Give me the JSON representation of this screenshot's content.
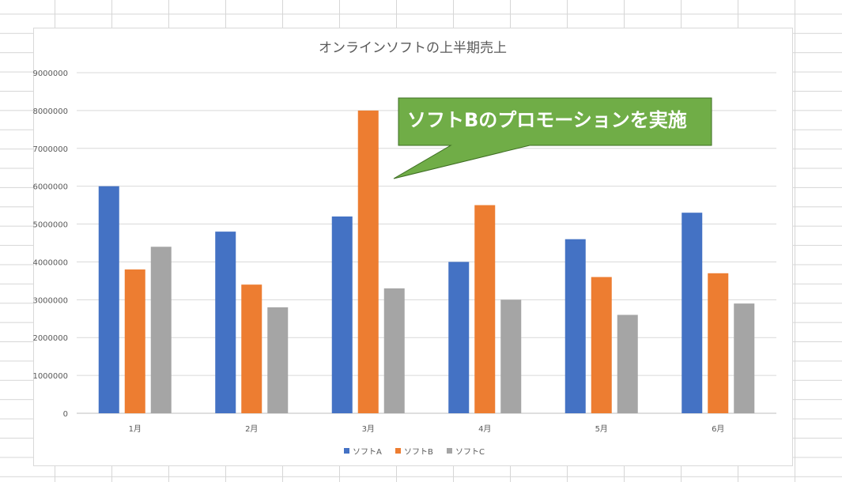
{
  "chart_data": {
    "type": "bar",
    "title": "オンラインソフトの上半期売上",
    "categories": [
      "1月",
      "2月",
      "3月",
      "4月",
      "5月",
      "6月"
    ],
    "series": [
      {
        "name": "ソフトA",
        "color": "#4472C4",
        "values": [
          6000000,
          4800000,
          5200000,
          4000000,
          4600000,
          5300000
        ]
      },
      {
        "name": "ソフトB",
        "color": "#ED7D31",
        "values": [
          3800000,
          3400000,
          8000000,
          5500000,
          3600000,
          3700000
        ]
      },
      {
        "name": "ソフトC",
        "color": "#A5A5A5",
        "values": [
          4400000,
          2800000,
          3300000,
          3000000,
          2600000,
          2900000
        ]
      }
    ],
    "ylim": [
      0,
      9000000
    ],
    "yticks": [
      0,
      1000000,
      2000000,
      3000000,
      4000000,
      5000000,
      6000000,
      7000000,
      8000000,
      9000000
    ],
    "xlabel": "",
    "ylabel": "",
    "grid": true,
    "legend": "bottom",
    "annotation": {
      "text": "ソフトBのプロモーションを実施",
      "color": "#70AD47"
    }
  }
}
